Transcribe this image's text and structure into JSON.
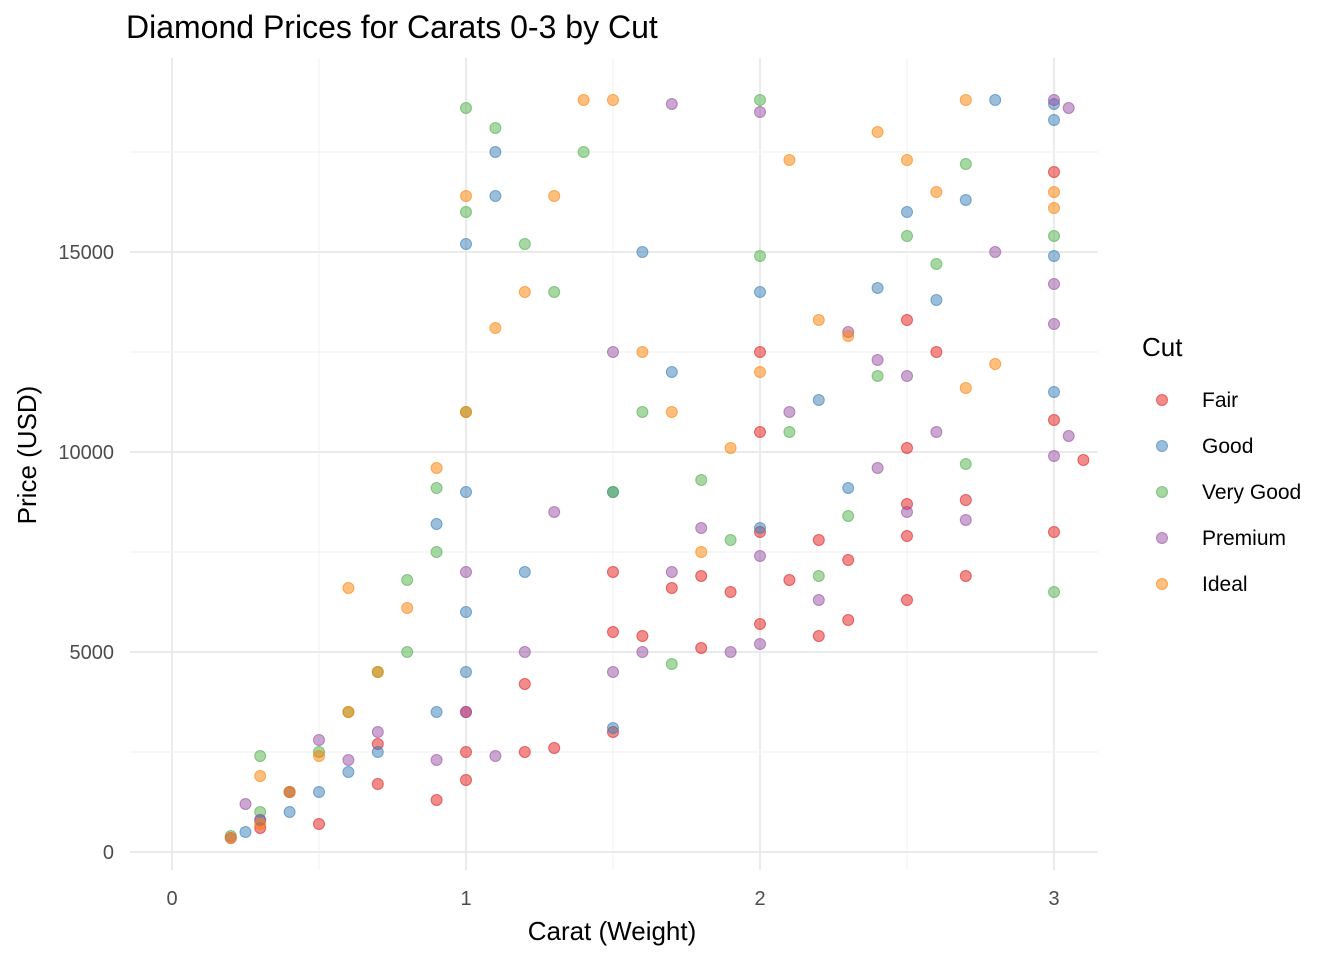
{
  "chart_data": {
    "type": "scatter",
    "title": "Diamond Prices for Carats 0-3 by Cut",
    "xlabel": "Carat (Weight)",
    "ylabel": "Price (USD)",
    "xlim": [
      0,
      3.1
    ],
    "ylim": [
      0,
      18800
    ],
    "x_ticks": [
      0,
      1,
      2,
      3
    ],
    "y_ticks": [
      0,
      5000,
      10000,
      15000
    ],
    "grid": true,
    "point_opacity": 0.5,
    "legend": {
      "title": "Cut",
      "placement": "right",
      "entries": [
        "Fair",
        "Good",
        "Very Good",
        "Premium",
        "Ideal"
      ]
    },
    "series": [
      {
        "name": "Fair",
        "color": "#e41a1c",
        "points": [
          [
            0.3,
            600
          ],
          [
            0.5,
            700
          ],
          [
            0.7,
            1700
          ],
          [
            0.7,
            2700
          ],
          [
            0.9,
            1300
          ],
          [
            1.0,
            1800
          ],
          [
            1.0,
            2500
          ],
          [
            1.0,
            3500
          ],
          [
            1.2,
            2500
          ],
          [
            1.2,
            4200
          ],
          [
            1.3,
            2600
          ],
          [
            1.5,
            3000
          ],
          [
            1.5,
            5500
          ],
          [
            1.5,
            7000
          ],
          [
            1.6,
            5400
          ],
          [
            1.7,
            6600
          ],
          [
            1.8,
            6900
          ],
          [
            1.8,
            5100
          ],
          [
            1.9,
            6500
          ],
          [
            2.0,
            5700
          ],
          [
            2.0,
            8000
          ],
          [
            2.0,
            10500
          ],
          [
            2.0,
            12500
          ],
          [
            2.1,
            6800
          ],
          [
            2.2,
            5400
          ],
          [
            2.3,
            5800
          ],
          [
            2.2,
            7800
          ],
          [
            2.3,
            7300
          ],
          [
            2.5,
            10100
          ],
          [
            2.5,
            8700
          ],
          [
            2.5,
            7900
          ],
          [
            2.5,
            6300
          ],
          [
            2.5,
            13300
          ],
          [
            2.6,
            12500
          ],
          [
            2.7,
            6900
          ],
          [
            2.7,
            8800
          ],
          [
            3.0,
            8000
          ],
          [
            3.0,
            10800
          ],
          [
            3.0,
            17000
          ],
          [
            3.1,
            9800
          ]
        ]
      },
      {
        "name": "Good",
        "color": "#377eb8",
        "points": [
          [
            0.25,
            500
          ],
          [
            0.3,
            800
          ],
          [
            0.4,
            1000
          ],
          [
            0.5,
            1500
          ],
          [
            0.6,
            2000
          ],
          [
            0.7,
            2500
          ],
          [
            0.9,
            3500
          ],
          [
            0.9,
            8200
          ],
          [
            1.0,
            4500
          ],
          [
            1.0,
            6000
          ],
          [
            1.0,
            9000
          ],
          [
            1.0,
            15200
          ],
          [
            1.1,
            17500
          ],
          [
            1.1,
            16400
          ],
          [
            1.2,
            7000
          ],
          [
            1.5,
            3100
          ],
          [
            1.5,
            9000
          ],
          [
            1.6,
            15000
          ],
          [
            1.7,
            12000
          ],
          [
            2.0,
            8100
          ],
          [
            2.0,
            14000
          ],
          [
            2.2,
            11300
          ],
          [
            2.3,
            9100
          ],
          [
            2.4,
            14100
          ],
          [
            2.5,
            16000
          ],
          [
            2.6,
            13800
          ],
          [
            2.7,
            16300
          ],
          [
            2.8,
            18800
          ],
          [
            3.0,
            11500
          ],
          [
            3.0,
            14900
          ],
          [
            3.0,
            18300
          ],
          [
            3.0,
            18700
          ]
        ]
      },
      {
        "name": "Very Good",
        "color": "#4daf4a",
        "points": [
          [
            0.2,
            400
          ],
          [
            0.3,
            1000
          ],
          [
            0.3,
            2400
          ],
          [
            0.4,
            1500
          ],
          [
            0.5,
            2500
          ],
          [
            0.6,
            3500
          ],
          [
            0.7,
            4500
          ],
          [
            0.8,
            5000
          ],
          [
            0.8,
            6800
          ],
          [
            0.9,
            7500
          ],
          [
            0.9,
            9100
          ],
          [
            1.0,
            11000
          ],
          [
            1.0,
            16000
          ],
          [
            1.0,
            18600
          ],
          [
            1.1,
            18100
          ],
          [
            1.2,
            15200
          ],
          [
            1.3,
            14000
          ],
          [
            1.4,
            17500
          ],
          [
            1.5,
            9000
          ],
          [
            1.6,
            11000
          ],
          [
            1.7,
            4700
          ],
          [
            1.8,
            9300
          ],
          [
            1.9,
            7800
          ],
          [
            2.0,
            14900
          ],
          [
            2.0,
            18800
          ],
          [
            2.1,
            10500
          ],
          [
            2.2,
            6900
          ],
          [
            2.3,
            8400
          ],
          [
            2.4,
            11900
          ],
          [
            2.5,
            15400
          ],
          [
            2.6,
            14700
          ],
          [
            2.7,
            9700
          ],
          [
            2.7,
            17200
          ],
          [
            3.0,
            6500
          ],
          [
            3.0,
            15400
          ]
        ]
      },
      {
        "name": "Premium",
        "color": "#984ea3",
        "points": [
          [
            0.2,
            350
          ],
          [
            0.25,
            1200
          ],
          [
            0.3,
            800
          ],
          [
            0.4,
            1500
          ],
          [
            0.5,
            2800
          ],
          [
            0.6,
            2300
          ],
          [
            0.7,
            3000
          ],
          [
            0.9,
            2300
          ],
          [
            1.0,
            3500
          ],
          [
            1.0,
            7000
          ],
          [
            1.1,
            2400
          ],
          [
            1.2,
            5000
          ],
          [
            1.3,
            8500
          ],
          [
            1.5,
            4500
          ],
          [
            1.5,
            12500
          ],
          [
            1.6,
            5000
          ],
          [
            1.7,
            7000
          ],
          [
            1.7,
            18700
          ],
          [
            1.8,
            8100
          ],
          [
            1.9,
            5000
          ],
          [
            2.0,
            5200
          ],
          [
            2.0,
            7400
          ],
          [
            2.0,
            18500
          ],
          [
            2.1,
            11000
          ],
          [
            2.2,
            6300
          ],
          [
            2.3,
            13000
          ],
          [
            2.4,
            12300
          ],
          [
            2.4,
            9600
          ],
          [
            2.5,
            8500
          ],
          [
            2.5,
            11900
          ],
          [
            2.6,
            10500
          ],
          [
            2.7,
            8300
          ],
          [
            2.8,
            15000
          ],
          [
            3.0,
            9900
          ],
          [
            3.0,
            13200
          ],
          [
            3.0,
            14200
          ],
          [
            3.0,
            18800
          ],
          [
            3.05,
            10400
          ],
          [
            3.05,
            18600
          ]
        ]
      },
      {
        "name": "Ideal",
        "color": "#ff7f00",
        "points": [
          [
            0.2,
            350
          ],
          [
            0.3,
            700
          ],
          [
            0.3,
            1900
          ],
          [
            0.4,
            1500
          ],
          [
            0.5,
            2400
          ],
          [
            0.6,
            3500
          ],
          [
            0.6,
            6600
          ],
          [
            0.7,
            4500
          ],
          [
            0.8,
            6100
          ],
          [
            0.9,
            9600
          ],
          [
            1.0,
            11000
          ],
          [
            1.0,
            16400
          ],
          [
            1.1,
            13100
          ],
          [
            1.2,
            14000
          ],
          [
            1.3,
            16400
          ],
          [
            1.4,
            18800
          ],
          [
            1.5,
            18800
          ],
          [
            1.6,
            12500
          ],
          [
            1.7,
            11000
          ],
          [
            1.8,
            7500
          ],
          [
            1.9,
            10100
          ],
          [
            2.0,
            12000
          ],
          [
            2.1,
            17300
          ],
          [
            2.2,
            13300
          ],
          [
            2.3,
            12900
          ],
          [
            2.4,
            18000
          ],
          [
            2.5,
            17300
          ],
          [
            2.6,
            16500
          ],
          [
            2.7,
            11600
          ],
          [
            2.7,
            18800
          ],
          [
            2.8,
            12200
          ],
          [
            3.0,
            16500
          ],
          [
            3.0,
            16100
          ]
        ]
      }
    ]
  }
}
